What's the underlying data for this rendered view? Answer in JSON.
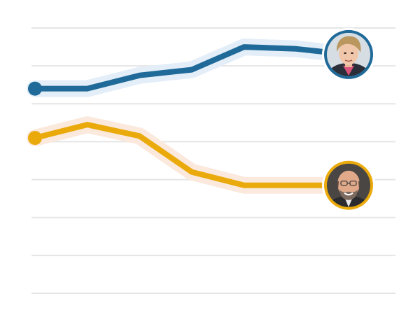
{
  "chart_data": {
    "type": "line",
    "title": "",
    "xlabel": "",
    "ylabel": "",
    "ylim": [
      0,
      7
    ],
    "grid": true,
    "gridlines": [
      0,
      1,
      2,
      3,
      4,
      5,
      6,
      7
    ],
    "x": [
      1,
      2,
      3,
      4,
      5,
      6,
      7
    ],
    "series": [
      {
        "values": [
          5.4,
          5.4,
          5.75,
          5.9,
          6.5,
          6.45,
          6.3
        ],
        "color": "#1f6a99",
        "halo": "#e3eef8",
        "end_marker": "portrait-avatar"
      },
      {
        "values": [
          4.1,
          4.45,
          4.15,
          3.2,
          2.85,
          2.85,
          2.85
        ],
        "color": "#eaaa0c",
        "halo": "#fbe9dd",
        "end_marker": "portrait-avatar"
      }
    ]
  },
  "colors": {
    "grid": "#e5e5e5",
    "background": "#ffffff"
  }
}
